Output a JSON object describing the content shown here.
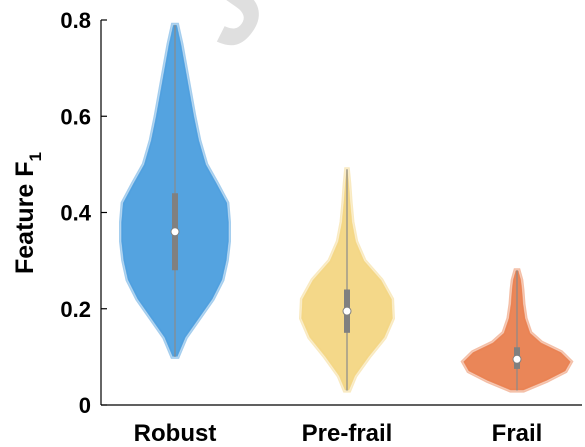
{
  "watermark_text": "Jo",
  "chart_data": {
    "type": "violin",
    "title": "",
    "xlabel": "",
    "ylabel_main": "Feature F",
    "ylabel_sub": "1",
    "ylim": [
      0,
      0.8
    ],
    "yticks": [
      "0",
      "0.2",
      "0.4",
      "0.6",
      "0.8"
    ],
    "categories": [
      "Robust",
      "Pre-frail",
      "Frail"
    ],
    "colors": [
      "#4b9ede",
      "#f3d683",
      "#e9804f"
    ],
    "series": [
      {
        "category": "Robust",
        "min": 0.1,
        "q1": 0.28,
        "median": 0.36,
        "q3": 0.44,
        "max": 0.79,
        "density": [
          [
            0.1,
            0.05
          ],
          [
            0.14,
            0.2
          ],
          [
            0.18,
            0.45
          ],
          [
            0.22,
            0.7
          ],
          [
            0.26,
            0.88
          ],
          [
            0.3,
            0.96
          ],
          [
            0.34,
            1.0
          ],
          [
            0.38,
            1.0
          ],
          [
            0.42,
            0.97
          ],
          [
            0.46,
            0.78
          ],
          [
            0.5,
            0.58
          ],
          [
            0.55,
            0.45
          ],
          [
            0.6,
            0.36
          ],
          [
            0.65,
            0.28
          ],
          [
            0.7,
            0.2
          ],
          [
            0.75,
            0.12
          ],
          [
            0.79,
            0.04
          ]
        ]
      },
      {
        "category": "Pre-frail",
        "min": 0.03,
        "q1": 0.15,
        "median": 0.195,
        "q3": 0.24,
        "max": 0.49,
        "density": [
          [
            0.03,
            0.05
          ],
          [
            0.06,
            0.18
          ],
          [
            0.1,
            0.48
          ],
          [
            0.14,
            0.82
          ],
          [
            0.18,
            1.0
          ],
          [
            0.22,
            0.98
          ],
          [
            0.26,
            0.75
          ],
          [
            0.3,
            0.38
          ],
          [
            0.34,
            0.2
          ],
          [
            0.38,
            0.12
          ],
          [
            0.42,
            0.08
          ],
          [
            0.46,
            0.05
          ],
          [
            0.49,
            0.02
          ]
        ]
      },
      {
        "category": "Frail",
        "min": 0.03,
        "q1": 0.075,
        "median": 0.095,
        "q3": 0.12,
        "max": 0.28,
        "density": [
          [
            0.03,
            0.12
          ],
          [
            0.05,
            0.55
          ],
          [
            0.07,
            0.9
          ],
          [
            0.09,
            1.0
          ],
          [
            0.11,
            0.82
          ],
          [
            0.13,
            0.45
          ],
          [
            0.15,
            0.25
          ],
          [
            0.18,
            0.16
          ],
          [
            0.21,
            0.12
          ],
          [
            0.24,
            0.1
          ],
          [
            0.26,
            0.08
          ],
          [
            0.28,
            0.03
          ]
        ]
      }
    ]
  }
}
